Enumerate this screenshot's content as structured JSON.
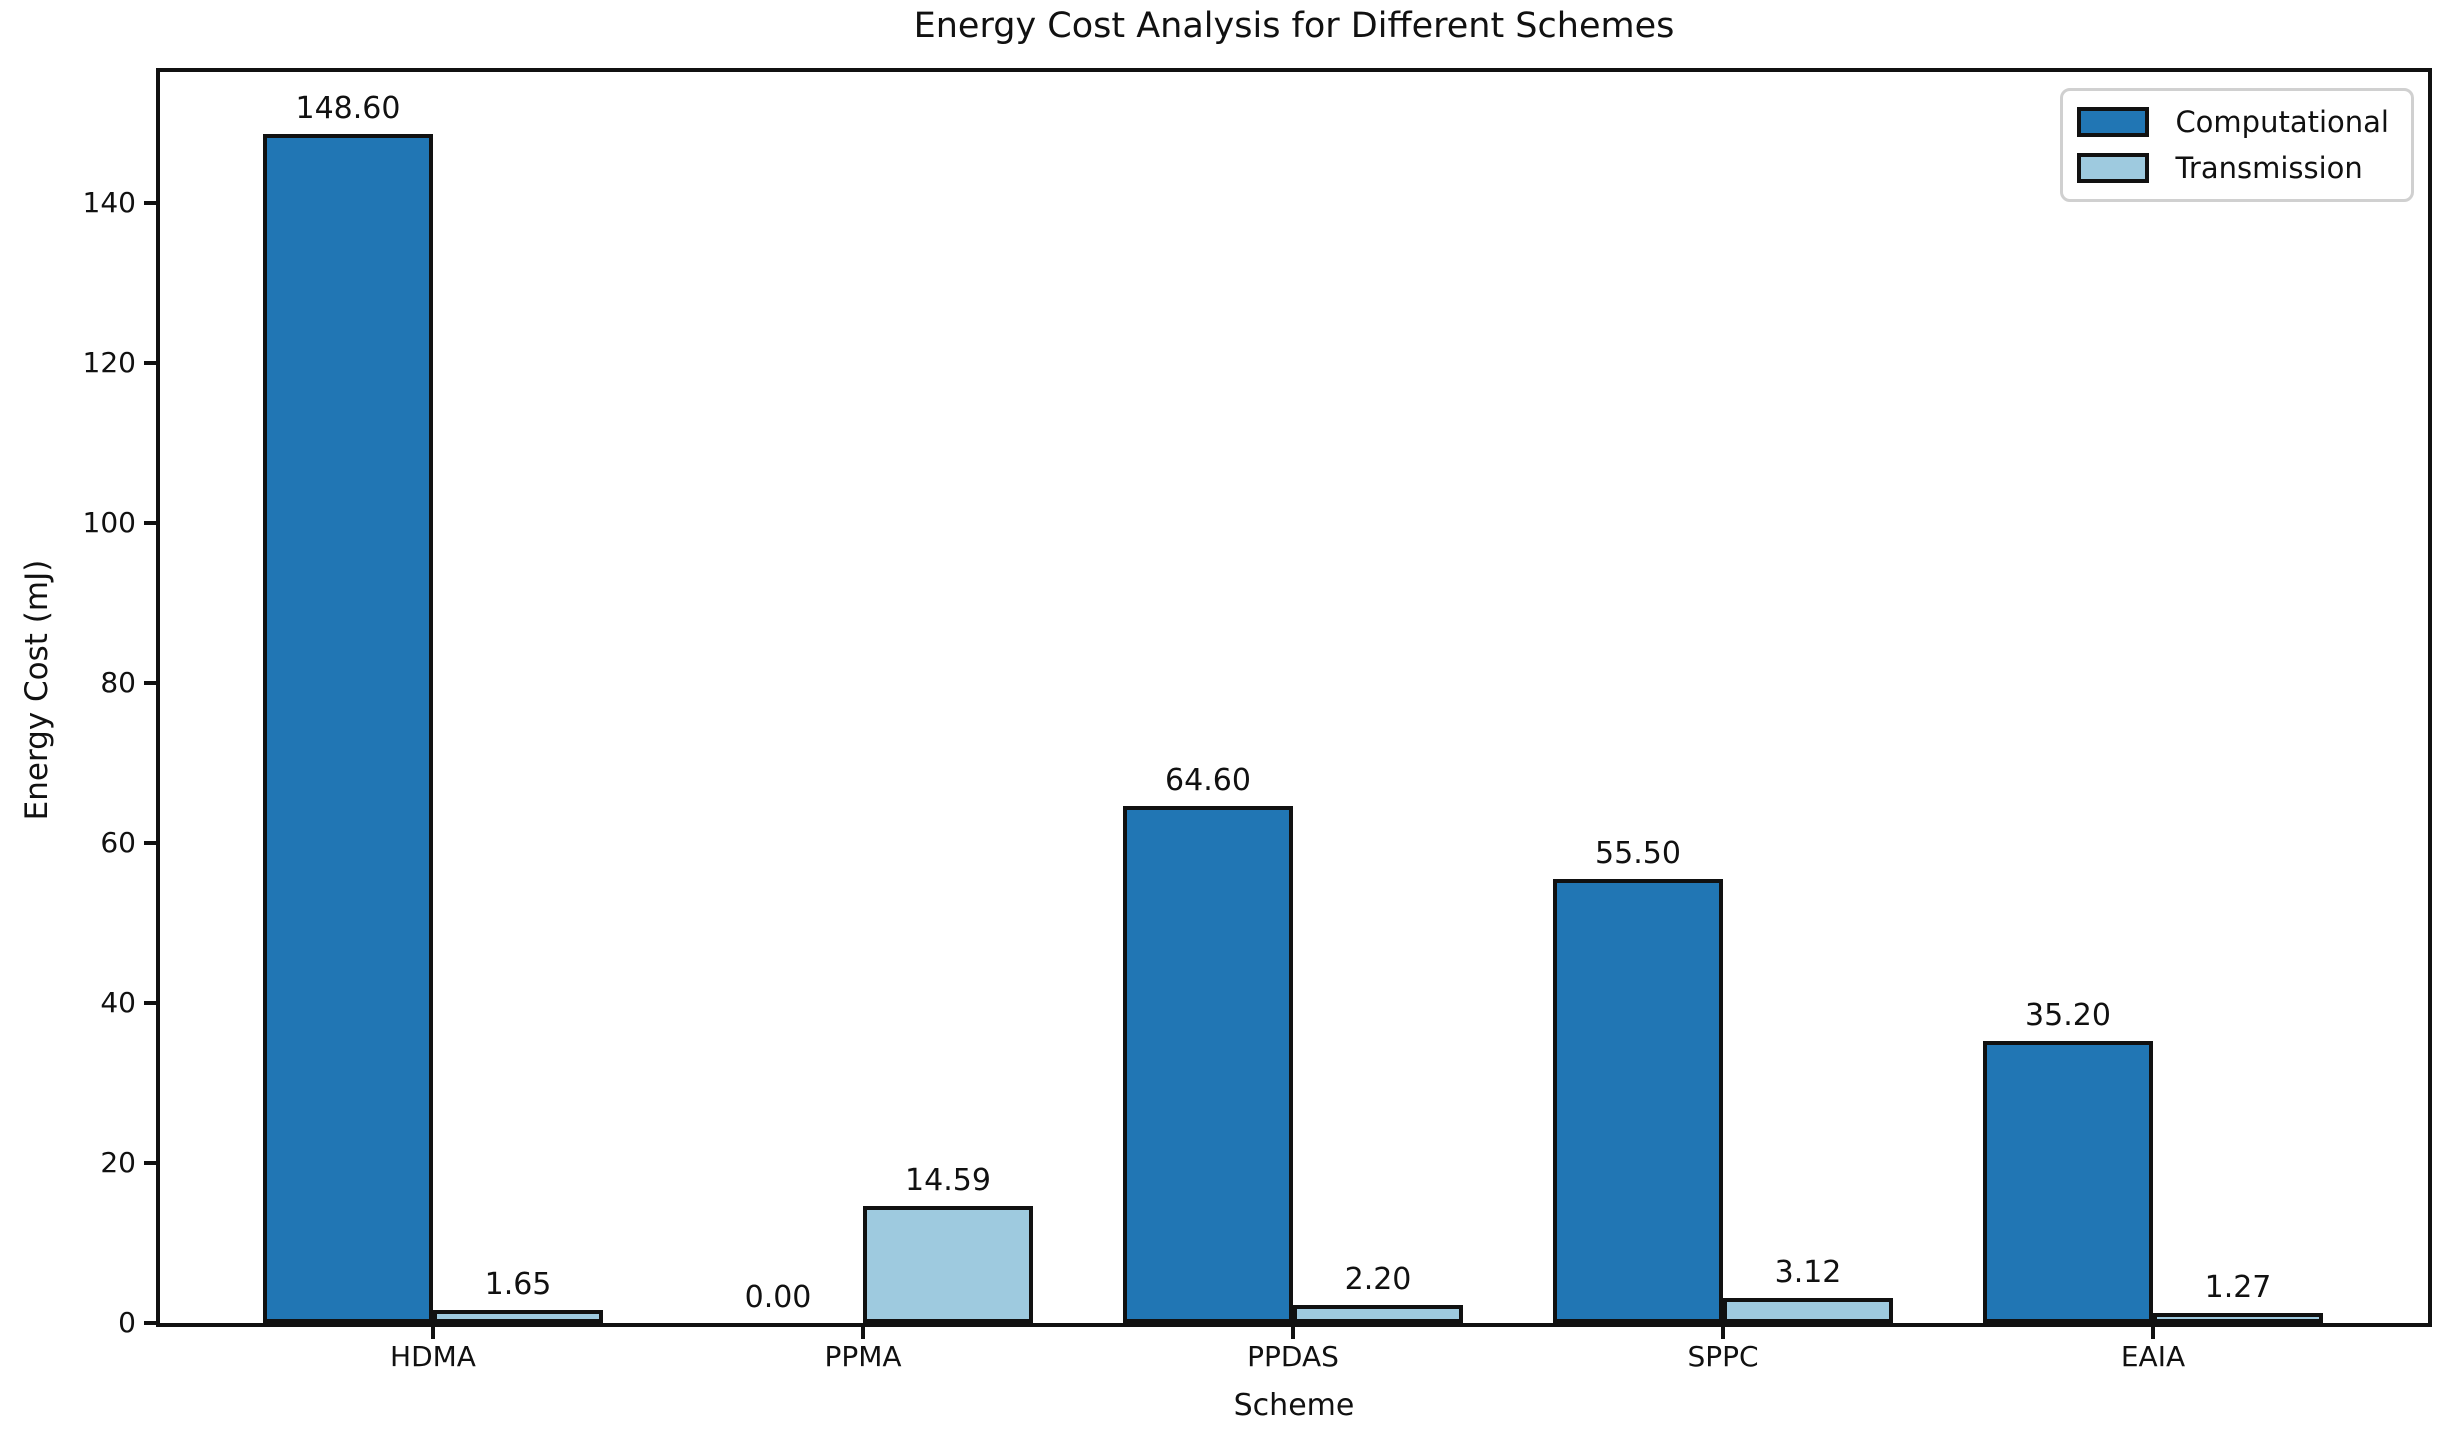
{
  "chart_data": {
    "type": "bar",
    "title": "Energy Cost Analysis for Different Schemes",
    "xlabel": "Scheme",
    "ylabel": "Energy Cost (mJ)",
    "categories": [
      "HDMA",
      "PPMA",
      "PPDAS",
      "SPPC",
      "EAIA"
    ],
    "series": [
      {
        "name": "Computational",
        "color": "#2176b4",
        "values": [
          148.6,
          0.0,
          64.6,
          55.5,
          35.2
        ]
      },
      {
        "name": "Transmission",
        "color": "#9ecadf",
        "values": [
          1.65,
          14.59,
          2.2,
          3.12,
          1.27
        ]
      }
    ],
    "yticks": [
      0,
      20,
      40,
      60,
      80,
      100,
      120,
      140
    ],
    "ylim": [
      0,
      156.4
    ],
    "value_label_decimals": 2,
    "grid": false,
    "legend_position": "upper right",
    "bar_edge_color": "#111111",
    "text_color": "#111111"
  }
}
